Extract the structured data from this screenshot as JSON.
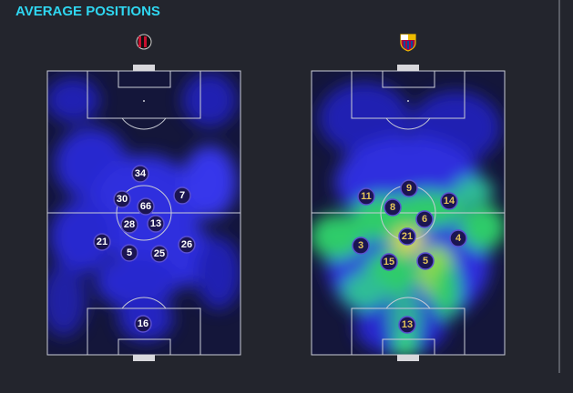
{
  "title": "AVERAGE POSITIONS",
  "teams": [
    {
      "players": [
        34,
        30,
        7,
        66,
        28,
        13,
        21,
        5,
        25,
        26,
        16
      ]
    },
    {
      "players": [
        11,
        9,
        14,
        8,
        6,
        3,
        21,
        4,
        15,
        5,
        13
      ]
    }
  ]
}
